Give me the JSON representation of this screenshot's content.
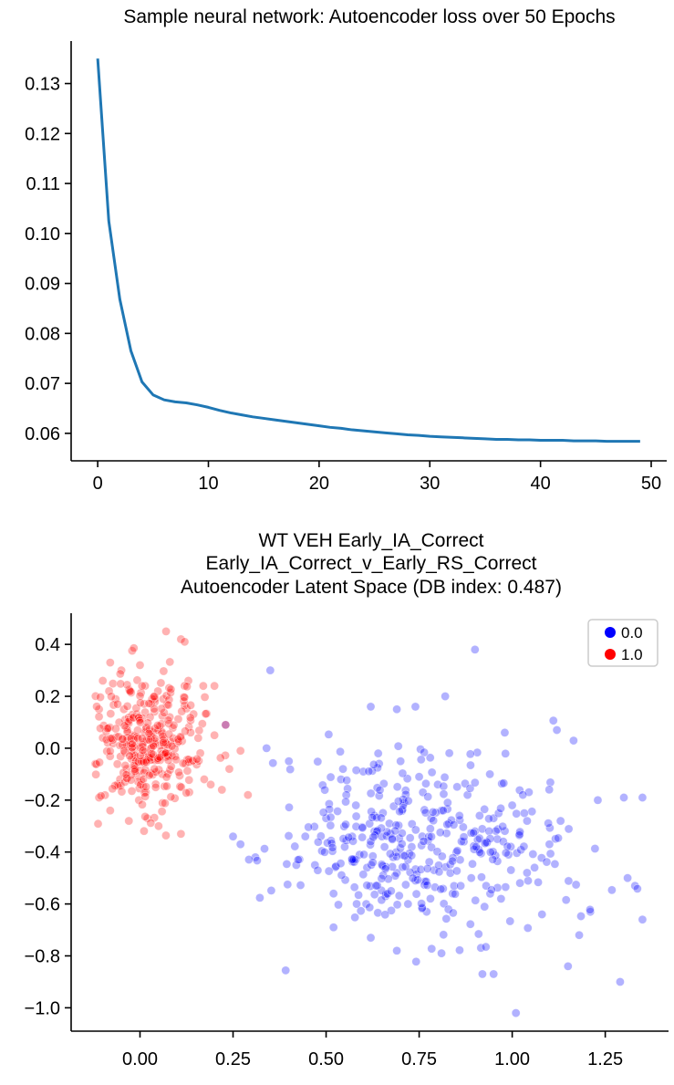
{
  "chart_data": [
    {
      "type": "line",
      "title": "Sample neural network: Autoencoder loss over 50 Epochs",
      "xlabel": "",
      "ylabel": "",
      "xlim": [
        -2.4,
        51.4
      ],
      "ylim": [
        0.0545,
        0.1385
      ],
      "xticks": [
        0,
        10,
        20,
        30,
        40,
        50
      ],
      "xtick_labels": [
        "0",
        "10",
        "20",
        "30",
        "40",
        "50"
      ],
      "yticks": [
        0.06,
        0.07,
        0.08,
        0.09,
        0.1,
        0.11,
        0.12,
        0.13
      ],
      "ytick_labels": [
        "0.06",
        "0.07",
        "0.08",
        "0.09",
        "0.10",
        "0.11",
        "0.12",
        "0.13"
      ],
      "grid": false,
      "series": [
        {
          "color": "#1f77b4",
          "x": [
            0,
            1,
            2,
            3,
            4,
            5,
            6,
            7,
            8,
            9,
            10,
            11,
            12,
            13,
            14,
            15,
            16,
            17,
            18,
            19,
            20,
            21,
            22,
            23,
            24,
            25,
            26,
            27,
            28,
            29,
            30,
            31,
            32,
            33,
            34,
            35,
            36,
            37,
            38,
            39,
            40,
            41,
            42,
            43,
            44,
            45,
            46,
            47,
            48,
            49
          ],
          "y": [
            0.135,
            0.1025,
            0.0868,
            0.0765,
            0.0703,
            0.0677,
            0.0667,
            0.0663,
            0.0661,
            0.0657,
            0.0652,
            0.0646,
            0.0641,
            0.0637,
            0.0633,
            0.063,
            0.0627,
            0.0624,
            0.0621,
            0.0618,
            0.0615,
            0.0612,
            0.061,
            0.0607,
            0.0605,
            0.0603,
            0.0601,
            0.0599,
            0.0597,
            0.0596,
            0.0594,
            0.0593,
            0.0592,
            0.0591,
            0.059,
            0.0589,
            0.0588,
            0.0588,
            0.0587,
            0.0587,
            0.0586,
            0.0586,
            0.0586,
            0.0585,
            0.0585,
            0.0585,
            0.0584,
            0.0584,
            0.0584,
            0.0584
          ]
        }
      ]
    },
    {
      "type": "scatter",
      "title_lines": [
        "WT VEH Early_IA_Correct",
        "Early_IA_Correct_v_Early_RS_Correct",
        "Autoencoder Latent Space (DB index: 0.487)"
      ],
      "xlabel": "",
      "ylabel": "",
      "xlim": [
        -0.185,
        1.42
      ],
      "ylim": [
        -1.09,
        0.52
      ],
      "xticks": [
        0.0,
        0.25,
        0.5,
        0.75,
        1.0,
        1.25
      ],
      "xtick_labels": [
        "0.00",
        "0.25",
        "0.50",
        "0.75",
        "1.00",
        "1.25"
      ],
      "yticks": [
        0.4,
        0.2,
        0.0,
        -0.2,
        -0.4,
        -0.6,
        -0.8,
        -1.0
      ],
      "ytick_labels": [
        "0.4",
        "0.2",
        "0.0",
        "−0.2",
        "−0.4",
        "−0.6",
        "−0.8",
        "−1.0"
      ],
      "grid": false,
      "legend_position": "top-right",
      "point_alpha": 0.3,
      "series": [
        {
          "name": "0.0",
          "color": "#0000ff",
          "approx_count": 430,
          "cluster": {
            "x_range": [
              0.22,
              1.35
            ],
            "y_range": [
              -1.02,
              0.38
            ],
            "x_mean": 0.76,
            "y_mean": -0.37,
            "x_sd": 0.19,
            "y_sd": 0.18
          },
          "points": [
            [
              0.9,
              0.38
            ],
            [
              0.35,
              0.3
            ],
            [
              0.82,
              0.2
            ],
            [
              0.62,
              0.16
            ],
            [
              0.69,
              0.15
            ],
            [
              0.74,
              0.16
            ],
            [
              1.12,
              0.07
            ],
            [
              0.98,
              0.06
            ],
            [
              0.25,
              -0.34
            ],
            [
              0.23,
              0.09
            ],
            [
              1.35,
              -0.19
            ],
            [
              1.3,
              -0.19
            ],
            [
              1.23,
              -0.2
            ],
            [
              1.31,
              -0.5
            ],
            [
              1.33,
              -0.53
            ],
            [
              1.35,
              -0.66
            ],
            [
              1.29,
              -0.9
            ],
            [
              1.15,
              -0.84
            ],
            [
              1.01,
              -1.02
            ],
            [
              0.92,
              -0.87
            ],
            [
              0.95,
              -0.87
            ],
            [
              0.81,
              -0.79
            ],
            [
              0.69,
              -0.78
            ],
            [
              0.62,
              -0.73
            ],
            [
              0.52,
              -0.69
            ],
            [
              1.21,
              -0.63
            ],
            [
              1.18,
              -0.72
            ],
            [
              1.08,
              -0.64
            ],
            [
              0.31,
              -0.42
            ],
            [
              0.42,
              -0.45
            ],
            [
              0.27,
              -0.37
            ],
            [
              0.4,
              -0.05
            ],
            [
              0.34,
              0.0
            ],
            [
              0.47,
              -0.45
            ],
            [
              0.52,
              -0.56
            ],
            [
              0.57,
              -0.34
            ],
            [
              0.61,
              -0.46
            ],
            [
              0.68,
              -0.42
            ],
            [
              0.73,
              -0.38
            ],
            [
              0.78,
              -0.31
            ],
            [
              0.83,
              -0.29
            ],
            [
              0.87,
              -0.36
            ],
            [
              0.91,
              -0.39
            ],
            [
              0.95,
              -0.27
            ],
            [
              0.99,
              -0.41
            ],
            [
              1.02,
              -0.33
            ],
            [
              1.06,
              -0.46
            ],
            [
              0.58,
              -0.22
            ],
            [
              0.63,
              -0.26
            ],
            [
              0.67,
              -0.29
            ],
            [
              0.71,
              -0.21
            ],
            [
              0.76,
              -0.17
            ],
            [
              0.81,
              -0.24
            ],
            [
              0.86,
              -0.43
            ],
            [
              0.89,
              -0.5
            ],
            [
              0.93,
              -0.53
            ],
            [
              0.97,
              -0.58
            ],
            [
              0.66,
              -0.57
            ],
            [
              0.72,
              -0.6
            ],
            [
              0.77,
              -0.63
            ],
            [
              0.84,
              -0.56
            ],
            [
              0.5,
              -0.27
            ],
            [
              0.54,
              -0.12
            ],
            [
              0.6,
              -0.09
            ],
            [
              0.64,
              -0.02
            ],
            [
              0.7,
              -0.05
            ],
            [
              0.75,
              -0.11
            ],
            [
              0.8,
              -0.14
            ],
            [
              0.88,
              -0.18
            ],
            [
              0.94,
              -0.1
            ],
            [
              1.0,
              -0.22
            ],
            [
              1.04,
              -0.28
            ],
            [
              0.55,
              -0.38
            ],
            [
              0.59,
              -0.41
            ],
            [
              0.65,
              -0.34
            ],
            [
              0.69,
              -0.48
            ],
            [
              0.74,
              -0.51
            ],
            [
              0.79,
              -0.47
            ],
            [
              0.85,
              -0.4
            ],
            [
              0.9,
              -0.32
            ],
            [
              0.96,
              -0.35
            ],
            [
              1.1,
              -0.37
            ],
            [
              1.13,
              -0.28
            ]
          ]
        },
        {
          "name": "1.0",
          "color": "#ff0000",
          "approx_count": 360,
          "cluster": {
            "x_range": [
              -0.12,
              0.3
            ],
            "y_range": [
              -0.34,
              0.45
            ],
            "x_mean": 0.02,
            "y_mean": 0.02,
            "x_sd": 0.07,
            "y_sd": 0.13
          },
          "points": [
            [
              0.07,
              0.45
            ],
            [
              0.11,
              0.42
            ],
            [
              0.12,
              0.41
            ],
            [
              -0.08,
              0.33
            ],
            [
              0.0,
              0.32
            ],
            [
              -0.05,
              0.3
            ],
            [
              0.13,
              0.26
            ],
            [
              -0.1,
              0.26
            ],
            [
              0.17,
              0.24
            ],
            [
              0.2,
              0.24
            ],
            [
              0.23,
              0.09
            ],
            [
              0.2,
              0.05
            ],
            [
              0.24,
              -0.08
            ],
            [
              0.27,
              -0.01
            ],
            [
              0.29,
              -0.18
            ],
            [
              0.11,
              -0.33
            ],
            [
              0.05,
              -0.3
            ],
            [
              0.02,
              -0.27
            ],
            [
              -0.03,
              -0.28
            ],
            [
              -0.08,
              -0.24
            ],
            [
              -0.11,
              -0.19
            ],
            [
              0.22,
              -0.16
            ],
            [
              0.19,
              -0.14
            ],
            [
              -0.11,
              0.15
            ],
            [
              -0.1,
              0.04
            ],
            [
              -0.12,
              -0.06
            ],
            [
              0.04,
              0.19
            ],
            [
              0.08,
              0.12
            ],
            [
              -0.02,
              0.05
            ],
            [
              0.01,
              -0.03
            ],
            [
              0.06,
              -0.1
            ],
            [
              -0.06,
              -0.14
            ],
            [
              0.1,
              0.02
            ],
            [
              0.14,
              -0.05
            ],
            [
              -0.04,
              0.11
            ]
          ]
        }
      ]
    }
  ]
}
